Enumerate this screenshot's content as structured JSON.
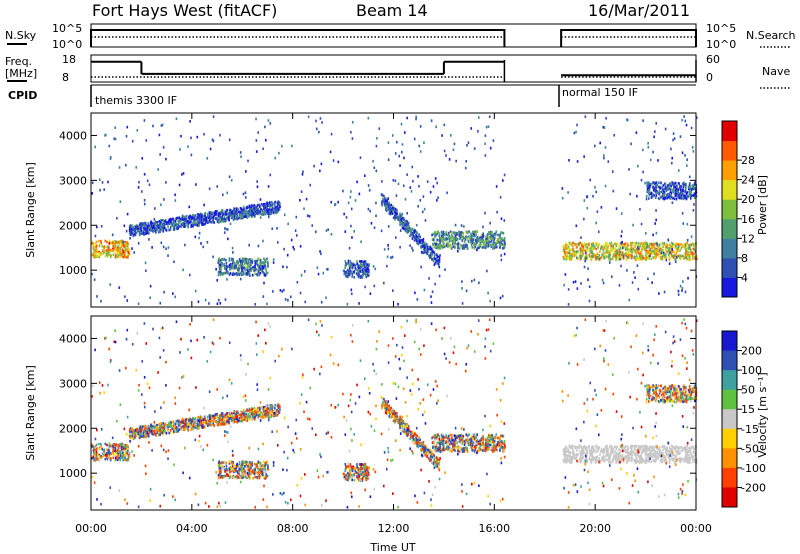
{
  "header": {
    "station": "Fort Hays West (fitACF)",
    "beam": "Beam 14",
    "date": "16/Mar/2011"
  },
  "strips": {
    "nsky_label": "N.Sky",
    "nsky_ticks": [
      "10^5",
      "10^0"
    ],
    "nsearch_label": "N.Search",
    "nsearch_ticks": [
      "10^5",
      "10^0"
    ],
    "freq_label": "Freq.",
    "freq_unit": "[MHz]",
    "freq_ticks": [
      "18",
      "8"
    ],
    "nave_label": "Nave",
    "nave_ticks": [
      "60",
      "0"
    ],
    "cpid_label": "CPID",
    "cpid_modes": [
      {
        "name": "themis 3300 IF",
        "start": 0.0,
        "end": 16.4
      },
      {
        "name": "normal 150 IF",
        "start": 18.65,
        "end": 24.0
      }
    ],
    "freq_segments": [
      {
        "start": 0.0,
        "end": 2.0,
        "mhz": 15.5
      },
      {
        "start": 2.0,
        "end": 14.0,
        "mhz": 11.0
      },
      {
        "start": 14.0,
        "end": 16.4,
        "mhz": 15.5
      },
      {
        "start": 18.65,
        "end": 24.0,
        "mhz": 10.5
      }
    ],
    "data_gap": {
      "start": 16.4,
      "end": 18.65
    }
  },
  "chart_data": [
    {
      "type": "heatmap",
      "name": "power",
      "ylabel": "Slant Range [km]",
      "xlabel": "Time UT",
      "xlim": [
        0,
        24
      ],
      "ylim": [
        180,
        4500
      ],
      "x_ticks": [
        "00:00",
        "04:00",
        "08:00",
        "12:00",
        "16:00",
        "20:00",
        "00:00"
      ],
      "y_ticks": [
        "1000",
        "2000",
        "3000",
        "4000"
      ],
      "colorbar_label": "Power [dB]",
      "colorbar_ticks": [
        "4",
        "8",
        "12",
        "16",
        "20",
        "24",
        "28"
      ],
      "colorbar_range": [
        0,
        30
      ],
      "colors": [
        "#1818e0",
        "#2f4fb4",
        "#3f7f9f",
        "#4f9f6f",
        "#7fbf3f",
        "#dfdf1f",
        "#ffa000",
        "#ff5a00",
        "#e00000"
      ],
      "features": [
        {
          "desc": "main band",
          "t_start": 0.0,
          "t_end": 1.5,
          "range_km": 1500,
          "power_db": 20
        },
        {
          "desc": "rising arc",
          "t_start": 1.5,
          "t_end": 7.5,
          "range_km_start": 1900,
          "range_km_end": 2450,
          "power_db": 5
        },
        {
          "desc": "patch",
          "t_start": 5.0,
          "t_end": 7.0,
          "range_km": 1100,
          "power_db": 8
        },
        {
          "desc": "patch",
          "t_start": 10.0,
          "t_end": 11.0,
          "range_km": 1050,
          "power_db": 6
        },
        {
          "desc": "descending arc",
          "t_start": 11.5,
          "t_end": 13.8,
          "range_km_start": 2600,
          "range_km_end": 1200,
          "power_db": 6
        },
        {
          "desc": "band",
          "t_start": 13.5,
          "t_end": 16.4,
          "range_km": 1700,
          "power_db": 10
        },
        {
          "desc": "main band",
          "t_start": 18.7,
          "t_end": 24.0,
          "range_km": 1450,
          "power_db": 18
        },
        {
          "desc": "upper arc",
          "t_start": 22.0,
          "t_end": 24.0,
          "range_km": 2800,
          "power_db": 5
        }
      ]
    },
    {
      "type": "heatmap",
      "name": "velocity",
      "ylabel": "Slant Range [km]",
      "xlabel": "Time UT",
      "xlim": [
        0,
        24
      ],
      "ylim": [
        180,
        4500
      ],
      "x_ticks": [
        "00:00",
        "04:00",
        "08:00",
        "12:00",
        "16:00",
        "20:00",
        "00:00"
      ],
      "y_ticks": [
        "1000",
        "2000",
        "3000",
        "4000"
      ],
      "colorbar_label": "Velocity [m s⁻¹]",
      "colorbar_ticks": [
        "200",
        "100",
        "50",
        "15",
        "-15",
        "-50",
        "-100",
        "-200"
      ],
      "colorbar_range": [
        -250,
        250
      ],
      "colors": [
        "#1818d0",
        "#2f4fb4",
        "#3fa0a0",
        "#60c040",
        "#c8c8c8",
        "#ffd000",
        "#ff9000",
        "#ff4000",
        "#e00000"
      ],
      "features": [
        {
          "desc": "ground scatter band",
          "t_start": 18.7,
          "t_end": 24.0,
          "range_km": 1450,
          "velocity_ms": 0
        },
        {
          "desc": "arc",
          "t_start": 1.5,
          "t_end": 7.5,
          "range_km_start": 1900,
          "range_km_end": 2450,
          "velocity_ms": -30
        }
      ]
    }
  ]
}
